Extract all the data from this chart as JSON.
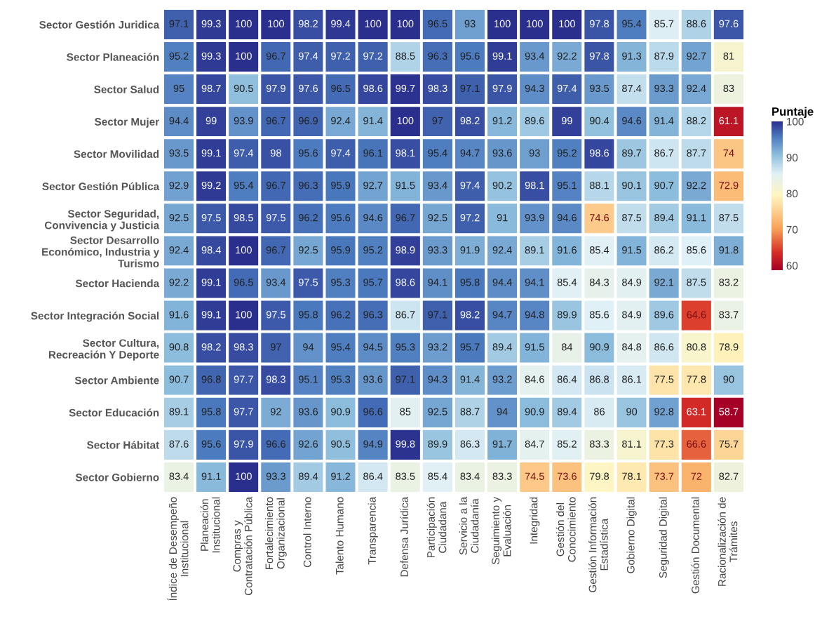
{
  "chart_data": {
    "type": "heatmap",
    "categories": [
      "Índice de Desempeño\nInstitucional",
      "Planeación\nInstitucional",
      "Compras y\nContratación Pública",
      "Fortalecimiento\nOrganizacional",
      "Control Interno",
      "Talento Humano",
      "Transparencia",
      "Defensa Jurídica",
      "Participación\nCiudadana",
      "Servicio a la\nCiudadanía",
      "Seguimiento y\nEvaluación",
      "Integridad",
      "Gestión del\nConocimiento",
      "Gestión Información\nEstadística",
      "Gobierno Digital",
      "Seguridad Digital",
      "Gestión Documental",
      "Racionalización de\nTrámites"
    ],
    "y_categories": [
      "Sector Gestión Juridica",
      "Sector Planeación",
      "Sector Salud",
      "Sector Mujer",
      "Sector Movilidad",
      "Sector Gestión Pública",
      "Sector Seguridad,\nConvivencia y Justicia",
      "Sector Desarrollo\nEconómico, Industria y\nTurismo",
      "Sector Hacienda",
      "Sector Integración Social",
      "Sector Cultura,\nRecreación Y Deporte",
      "Sector Ambiente",
      "Sector Educación",
      "Sector Hábitat",
      "Sector Gobierno"
    ],
    "cells": [
      [
        97.1,
        99.3,
        100,
        100,
        98.2,
        99.4,
        100,
        100,
        96.5,
        93,
        100,
        100,
        100,
        97.8,
        95.4,
        85.7,
        88.6,
        97.6
      ],
      [
        95.2,
        99.3,
        100,
        96.7,
        97.4,
        97.2,
        97.2,
        88.5,
        96.3,
        95.6,
        99.1,
        93.4,
        92.2,
        97.8,
        91.3,
        87.9,
        92.7,
        81
      ],
      [
        95,
        98.7,
        90.5,
        97.9,
        97.6,
        96.5,
        98.6,
        99.7,
        98.3,
        97.1,
        97.9,
        94.3,
        97.4,
        93.5,
        87.4,
        93.3,
        92.4,
        83
      ],
      [
        94.4,
        99,
        93.9,
        96.7,
        96.9,
        92.4,
        91.4,
        100,
        97,
        98.2,
        91.2,
        89.6,
        99,
        90.4,
        94.6,
        91.4,
        88.2,
        61.1
      ],
      [
        93.5,
        99.1,
        97.4,
        98,
        95.6,
        97.4,
        96.1,
        98.1,
        95.4,
        94.7,
        93.6,
        93,
        95.2,
        98.6,
        89.7,
        86.7,
        87.7,
        74
      ],
      [
        92.9,
        99.2,
        95.4,
        96.7,
        96.3,
        95.9,
        92.7,
        91.5,
        93.4,
        97.4,
        90.2,
        98.1,
        95.1,
        88.1,
        90.1,
        90.7,
        92.2,
        72.9
      ],
      [
        92.5,
        97.5,
        98.5,
        97.5,
        96.2,
        95.6,
        94.6,
        96.7,
        92.5,
        97.2,
        91,
        93.9,
        94.6,
        74.6,
        87.5,
        89.4,
        91.1,
        87.5
      ],
      [
        92.4,
        98.4,
        100,
        96.7,
        92.5,
        95.9,
        95.2,
        98.9,
        93.3,
        91.9,
        92.4,
        89.1,
        91.6,
        85.4,
        91.5,
        86.2,
        85.6,
        91.8
      ],
      [
        92.2,
        99.1,
        96.5,
        93.4,
        97.5,
        95.3,
        95.7,
        98.6,
        94.1,
        95.8,
        94.4,
        94.1,
        85.4,
        84.3,
        84.9,
        92.1,
        87.5,
        83.2
      ],
      [
        91.6,
        99.1,
        100,
        97.5,
        95.8,
        96.2,
        96.3,
        86.7,
        97.1,
        98.2,
        94.7,
        94.8,
        89.9,
        85.6,
        84.9,
        89.6,
        64.6,
        83.7
      ],
      [
        90.8,
        98.2,
        98.3,
        97,
        94,
        95.4,
        94.5,
        95.3,
        93.2,
        95.7,
        89.4,
        91.5,
        84,
        90.9,
        84.8,
        86.6,
        80.8,
        78.9
      ],
      [
        90.7,
        96.8,
        97.7,
        98.3,
        95.1,
        95.3,
        93.6,
        97.1,
        94.3,
        91.4,
        93.2,
        84.6,
        86.4,
        86.8,
        86.1,
        77.5,
        77.8,
        90
      ],
      [
        89.1,
        95.8,
        97.7,
        92,
        93.6,
        90.9,
        96.6,
        85,
        92.5,
        88.7,
        94,
        90.9,
        89.4,
        86,
        90,
        92.8,
        63.1,
        58.7
      ],
      [
        87.6,
        95.6,
        97.9,
        96.6,
        92.6,
        90.5,
        94.9,
        99.8,
        89.9,
        86.3,
        91.7,
        84.7,
        85.2,
        83.3,
        81.1,
        77.3,
        66.6,
        75.7
      ],
      [
        83.4,
        91.1,
        100,
        93.3,
        89.4,
        91.2,
        86.4,
        83.5,
        85.4,
        83.4,
        83.3,
        74.5,
        73.6,
        79.8,
        78.1,
        73.7,
        72,
        82.7
      ]
    ],
    "clabel": "Puntaje",
    "clim": [
      58.7,
      100
    ],
    "cticks": [
      60,
      70,
      80,
      90,
      100
    ],
    "data_labels": true
  }
}
